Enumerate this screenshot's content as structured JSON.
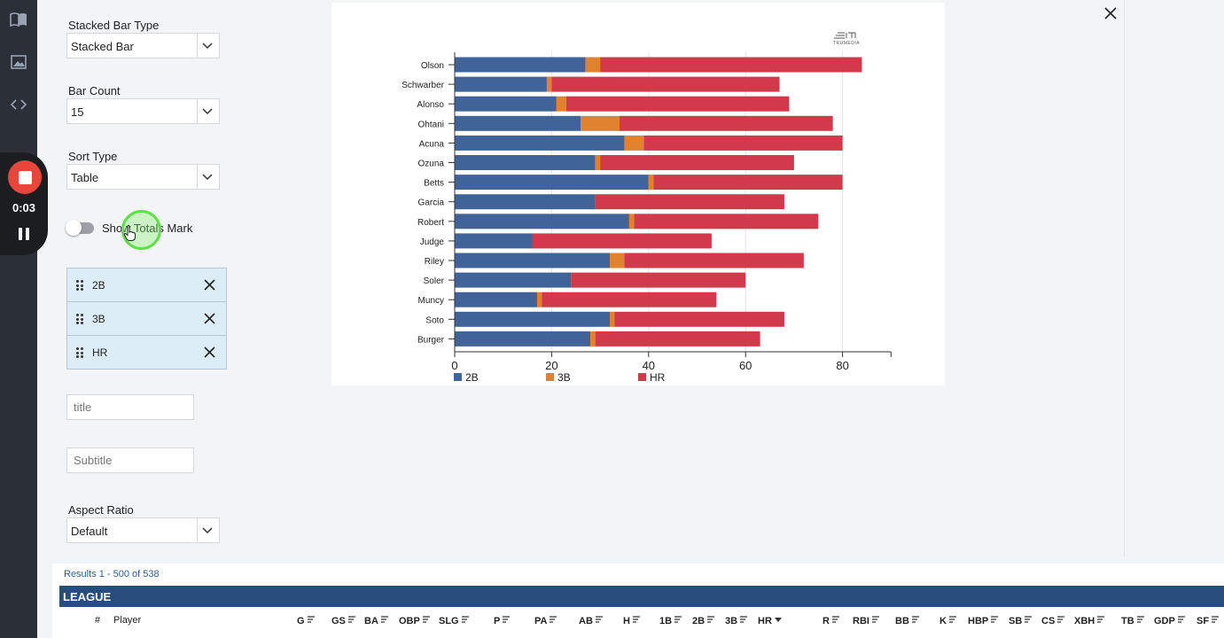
{
  "sidebar": {
    "icons": [
      "book-icon",
      "image-icon",
      "code-icon"
    ]
  },
  "recorder": {
    "time": "0:03"
  },
  "form": {
    "stacked_bar_type": {
      "label": "Stacked Bar Type",
      "value": "Stacked Bar"
    },
    "bar_count": {
      "label": "Bar Count",
      "value": "15"
    },
    "sort_type": {
      "label": "Sort Type",
      "value": "Table"
    },
    "show_totals_mark": {
      "label": "Show Totals Mark",
      "enabled": false
    },
    "series": [
      {
        "name": "2B"
      },
      {
        "name": "3B"
      },
      {
        "name": "HR"
      }
    ],
    "title": {
      "placeholder": "title",
      "value": ""
    },
    "subtitle": {
      "placeholder": "Subtitle",
      "value": ""
    },
    "aspect_ratio": {
      "label": "Aspect Ratio",
      "value": "Default"
    }
  },
  "chart_data": {
    "type": "bar",
    "orientation": "horizontal",
    "stacked": true,
    "categories": [
      "Olson",
      "Schwarber",
      "Alonso",
      "Ohtani",
      "Acuna",
      "Ozuna",
      "Betts",
      "Garcia",
      "Robert",
      "Judge",
      "Riley",
      "Soler",
      "Muncy",
      "Soto",
      "Burger"
    ],
    "series": [
      {
        "name": "2B",
        "color": "#40639a",
        "values": [
          27,
          19,
          21,
          26,
          35,
          29,
          40,
          29,
          36,
          16,
          32,
          24,
          17,
          32,
          28
        ]
      },
      {
        "name": "3B",
        "color": "#e0822f",
        "values": [
          3,
          1,
          2,
          8,
          4,
          1,
          1,
          0,
          1,
          0,
          3,
          0,
          1,
          1,
          1
        ]
      },
      {
        "name": "HR",
        "color": "#d23a4c",
        "values": [
          54,
          47,
          46,
          44,
          41,
          40,
          39,
          39,
          38,
          37,
          37,
          36,
          36,
          35,
          34
        ]
      }
    ],
    "xlim": [
      0,
      90
    ],
    "xticks": [
      0,
      20,
      40,
      60,
      80
    ],
    "grid": true,
    "legend": "bottom-left",
    "logo": "TRUMEDIA"
  },
  "results": {
    "count_text": "Results 1 - 500 of 538",
    "group": "LEAGUE",
    "columns": [
      "#",
      "Player",
      "G",
      "GS",
      "BA",
      "OBP",
      "SLG",
      "P",
      "PA",
      "AB",
      "H",
      "1B",
      "2B",
      "3B",
      "HR",
      "R",
      "RBI",
      "BB",
      "K",
      "HBP",
      "SB",
      "CS",
      "XBH",
      "TB",
      "GDP",
      "SF"
    ],
    "sorted_column": "HR"
  },
  "colors": {
    "league_bar": "#274d7c",
    "recorder_stop": "#e8463a",
    "cursor_ring": "#5fe04a"
  }
}
